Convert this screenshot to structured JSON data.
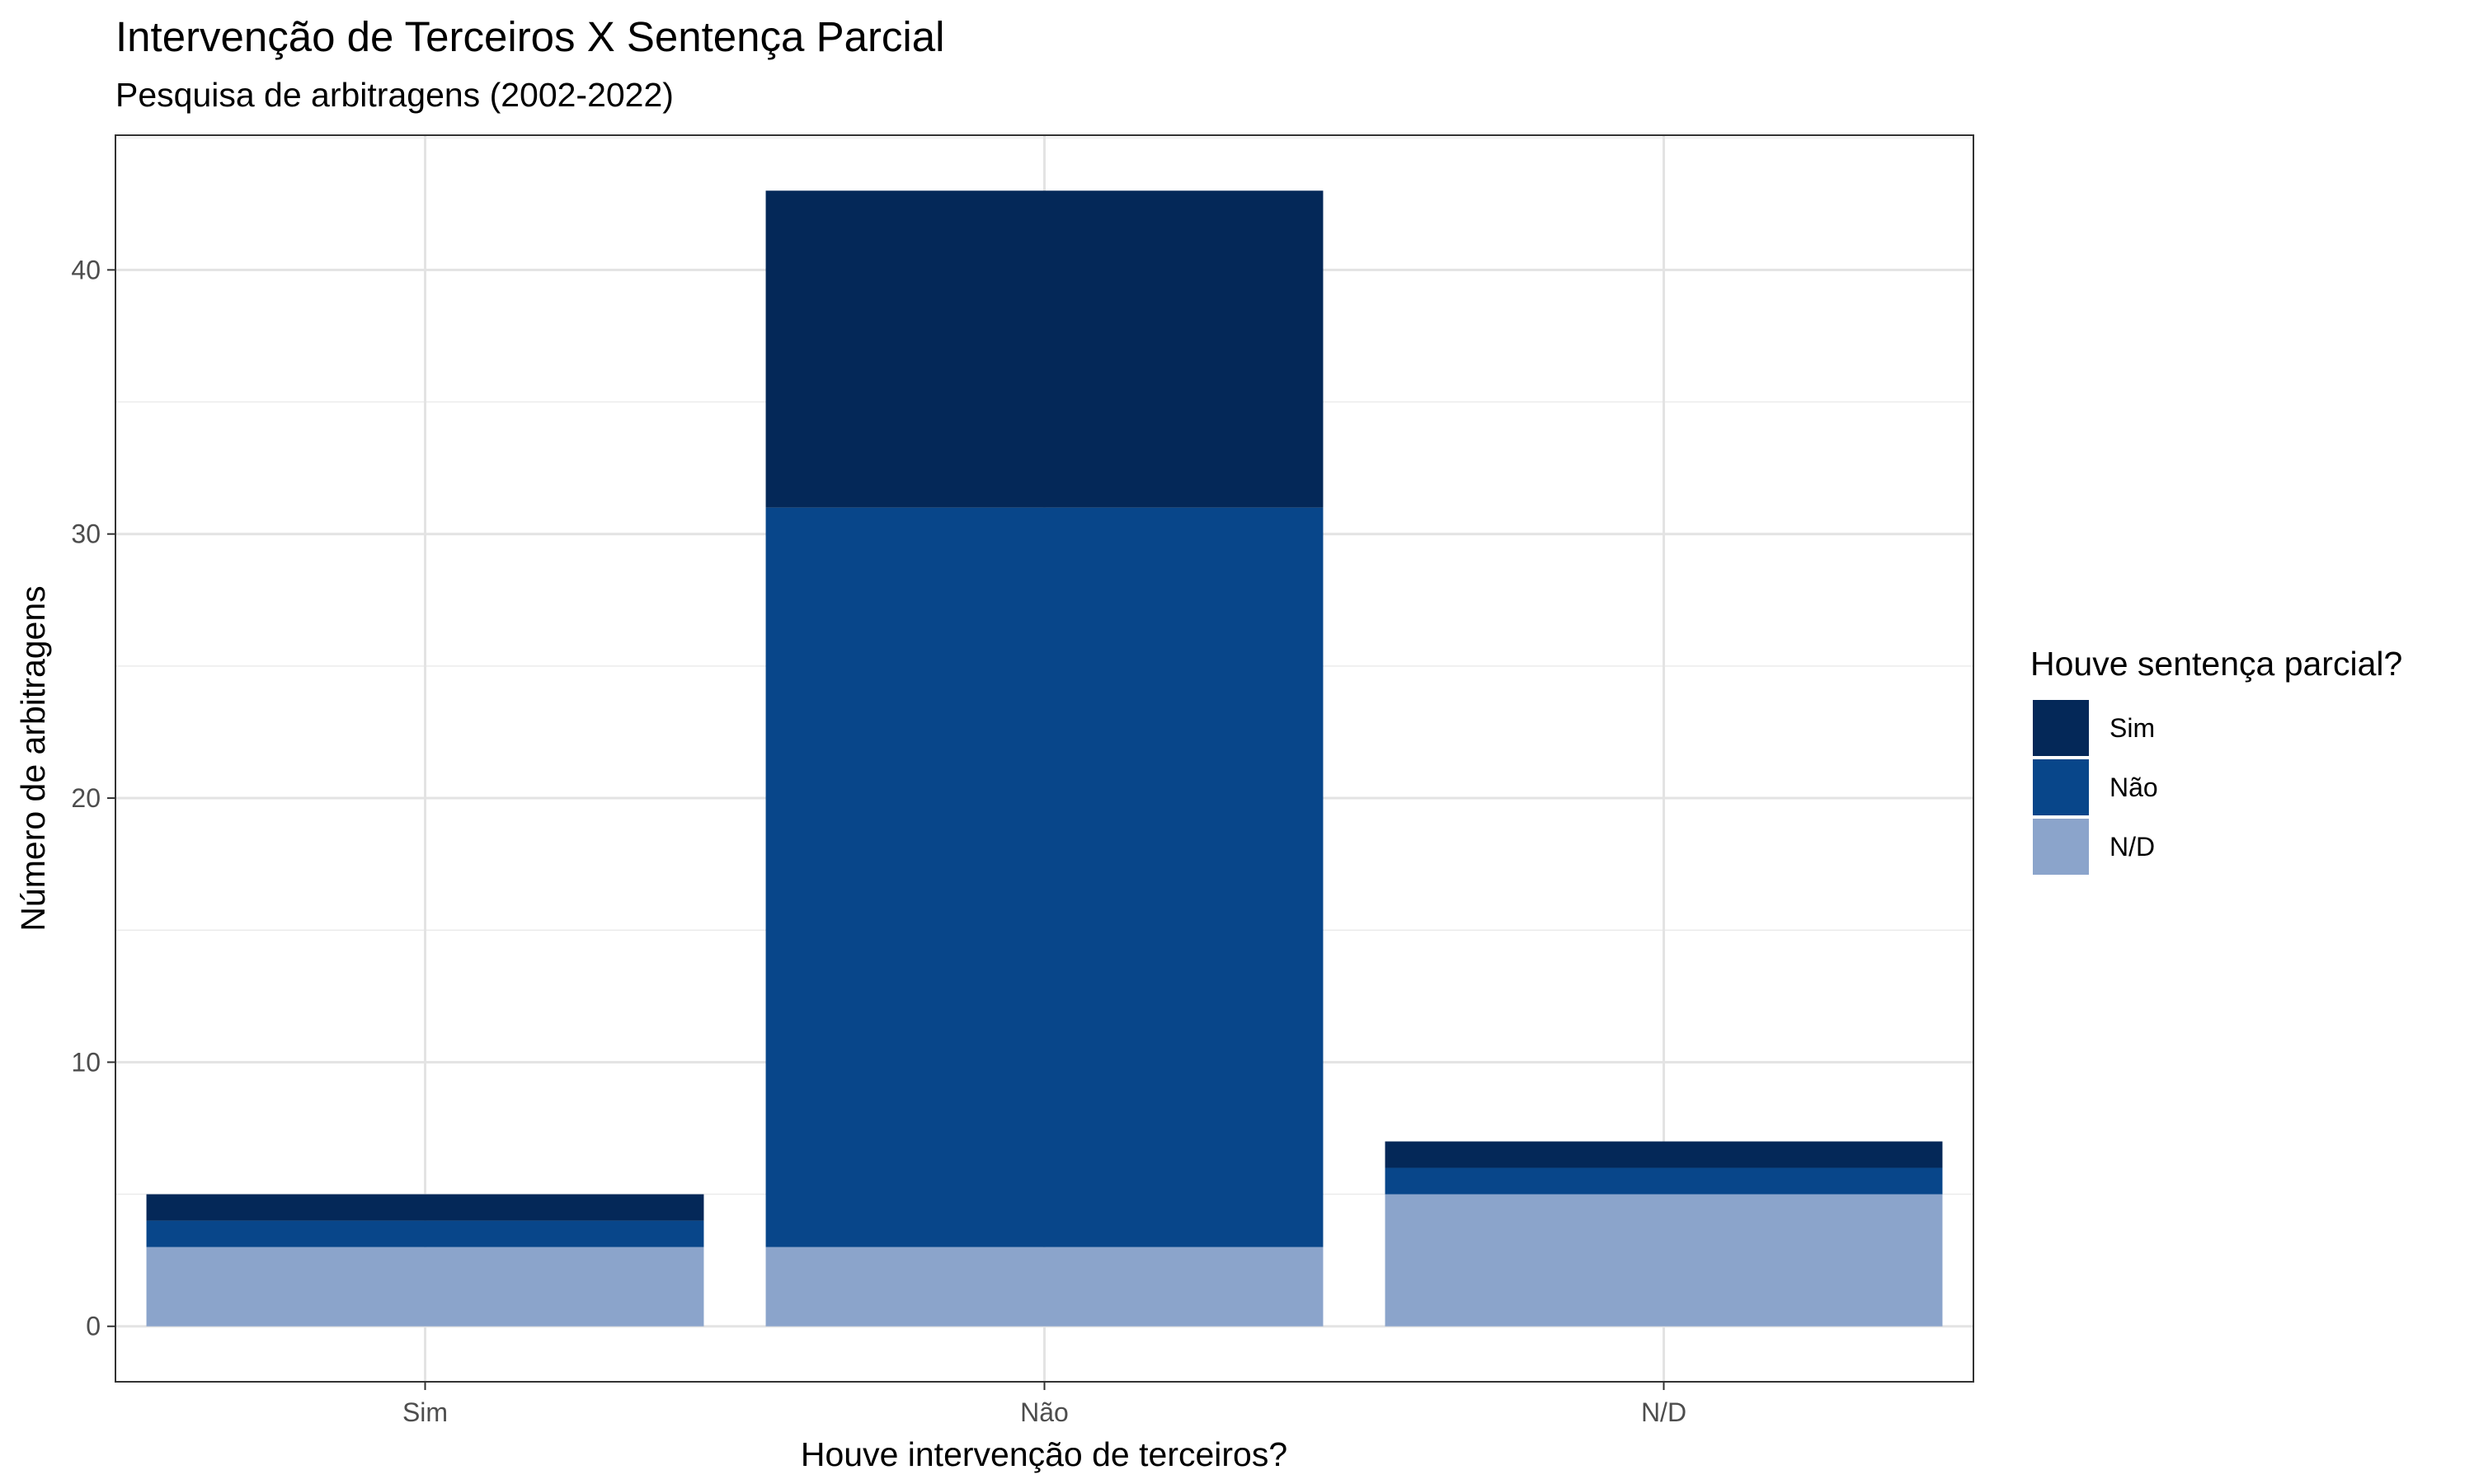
{
  "chart_data": {
    "type": "bar",
    "stacked": true,
    "title": "Intervenção de Terceiros X Sentença Parcial",
    "subtitle": "Pesquisa de arbitragens (2002-2022)",
    "xlabel": "Houve intervenção de terceiros?",
    "ylabel": "Número de arbitragens",
    "categories": [
      "Sim",
      "Não",
      "N/D"
    ],
    "series": [
      {
        "name": "N/D",
        "color": "#8ba4cb",
        "values": [
          3,
          3,
          5
        ]
      },
      {
        "name": "Não",
        "color": "#08468a",
        "values": [
          1,
          28,
          1
        ]
      },
      {
        "name": "Sim",
        "color": "#042858",
        "values": [
          1,
          12,
          1
        ]
      }
    ],
    "ylim": [
      -2.1,
      45.1
    ],
    "yticks": [
      0,
      10,
      20,
      30,
      40
    ],
    "grid": true,
    "legend": {
      "title": "Houve sentença parcial?",
      "position": "right",
      "items": [
        {
          "label": "Sim",
          "color": "#042858"
        },
        {
          "label": "Não",
          "color": "#08468a"
        },
        {
          "label": "N/D",
          "color": "#8ba4cb"
        }
      ]
    }
  }
}
